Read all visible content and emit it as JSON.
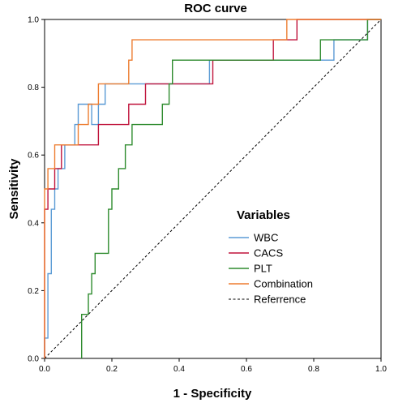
{
  "chart_data": {
    "type": "line",
    "title": "ROC curve",
    "xlabel": "1 - Specificity",
    "ylabel": "Sensitivity",
    "xlim": [
      0,
      1
    ],
    "ylim": [
      0,
      1
    ],
    "xticks": [
      "0.0",
      "0.2",
      "0.4",
      "0.6",
      "0.8",
      "1.0"
    ],
    "yticks": [
      "0.0",
      "0.2",
      "0.4",
      "0.6",
      "0.8",
      "1.0"
    ],
    "legend_title": "Variables",
    "legend_position": "bottom-right",
    "grid": false,
    "series": [
      {
        "name": "WBC",
        "color": "#5b9bd5",
        "points": [
          [
            0,
            0
          ],
          [
            0,
            0.06
          ],
          [
            0.01,
            0.06
          ],
          [
            0.01,
            0.25
          ],
          [
            0.02,
            0.25
          ],
          [
            0.02,
            0.44
          ],
          [
            0.03,
            0.44
          ],
          [
            0.03,
            0.5
          ],
          [
            0.04,
            0.5
          ],
          [
            0.04,
            0.56
          ],
          [
            0.06,
            0.56
          ],
          [
            0.06,
            0.63
          ],
          [
            0.09,
            0.63
          ],
          [
            0.09,
            0.69
          ],
          [
            0.1,
            0.69
          ],
          [
            0.1,
            0.75
          ],
          [
            0.14,
            0.75
          ],
          [
            0.14,
            0.69
          ],
          [
            0.16,
            0.69
          ],
          [
            0.16,
            0.75
          ],
          [
            0.18,
            0.75
          ],
          [
            0.18,
            0.81
          ],
          [
            0.37,
            0.81
          ],
          [
            0.37,
            0.81
          ],
          [
            0.49,
            0.81
          ],
          [
            0.49,
            0.88
          ],
          [
            0.86,
            0.88
          ],
          [
            0.86,
            0.94
          ],
          [
            0.96,
            0.94
          ],
          [
            0.96,
            1.0
          ],
          [
            1.0,
            1.0
          ]
        ]
      },
      {
        "name": "CACS",
        "color": "#c0143c",
        "points": [
          [
            0,
            0
          ],
          [
            0,
            0.44
          ],
          [
            0.01,
            0.44
          ],
          [
            0.01,
            0.5
          ],
          [
            0.03,
            0.5
          ],
          [
            0.03,
            0.56
          ],
          [
            0.05,
            0.56
          ],
          [
            0.05,
            0.63
          ],
          [
            0.16,
            0.63
          ],
          [
            0.16,
            0.69
          ],
          [
            0.25,
            0.69
          ],
          [
            0.25,
            0.75
          ],
          [
            0.3,
            0.75
          ],
          [
            0.3,
            0.81
          ],
          [
            0.5,
            0.81
          ],
          [
            0.5,
            0.88
          ],
          [
            0.68,
            0.88
          ],
          [
            0.68,
            0.94
          ],
          [
            0.72,
            0.94
          ],
          [
            0.72,
            0.94
          ],
          [
            0.75,
            0.94
          ],
          [
            0.75,
            1.0
          ],
          [
            1.0,
            1.0
          ]
        ]
      },
      {
        "name": "PLT",
        "color": "#2e8b2e",
        "points": [
          [
            0.11,
            0
          ],
          [
            0.11,
            0.13
          ],
          [
            0.13,
            0.13
          ],
          [
            0.13,
            0.19
          ],
          [
            0.14,
            0.19
          ],
          [
            0.14,
            0.25
          ],
          [
            0.15,
            0.25
          ],
          [
            0.15,
            0.31
          ],
          [
            0.19,
            0.31
          ],
          [
            0.19,
            0.44
          ],
          [
            0.2,
            0.44
          ],
          [
            0.2,
            0.5
          ],
          [
            0.22,
            0.5
          ],
          [
            0.22,
            0.56
          ],
          [
            0.24,
            0.56
          ],
          [
            0.24,
            0.63
          ],
          [
            0.26,
            0.63
          ],
          [
            0.26,
            0.69
          ],
          [
            0.35,
            0.69
          ],
          [
            0.35,
            0.75
          ],
          [
            0.37,
            0.75
          ],
          [
            0.37,
            0.81
          ],
          [
            0.38,
            0.81
          ],
          [
            0.38,
            0.88
          ],
          [
            0.82,
            0.88
          ],
          [
            0.82,
            0.94
          ],
          [
            0.96,
            0.94
          ],
          [
            0.96,
            1.0
          ],
          [
            1.0,
            1.0
          ]
        ]
      },
      {
        "name": "Combination",
        "color": "#ed7d31",
        "points": [
          [
            0,
            0
          ],
          [
            0,
            0.5
          ],
          [
            0.01,
            0.5
          ],
          [
            0.01,
            0.56
          ],
          [
            0.03,
            0.56
          ],
          [
            0.03,
            0.63
          ],
          [
            0.1,
            0.63
          ],
          [
            0.1,
            0.69
          ],
          [
            0.13,
            0.69
          ],
          [
            0.13,
            0.75
          ],
          [
            0.16,
            0.75
          ],
          [
            0.16,
            0.81
          ],
          [
            0.25,
            0.81
          ],
          [
            0.25,
            0.88
          ],
          [
            0.26,
            0.88
          ],
          [
            0.26,
            0.94
          ],
          [
            0.72,
            0.94
          ],
          [
            0.72,
            1.0
          ],
          [
            1.0,
            1.0
          ]
        ]
      },
      {
        "name": "Referrence",
        "color": "#000000",
        "dashed": true,
        "points": [
          [
            0,
            0
          ],
          [
            1,
            1
          ]
        ]
      }
    ]
  }
}
